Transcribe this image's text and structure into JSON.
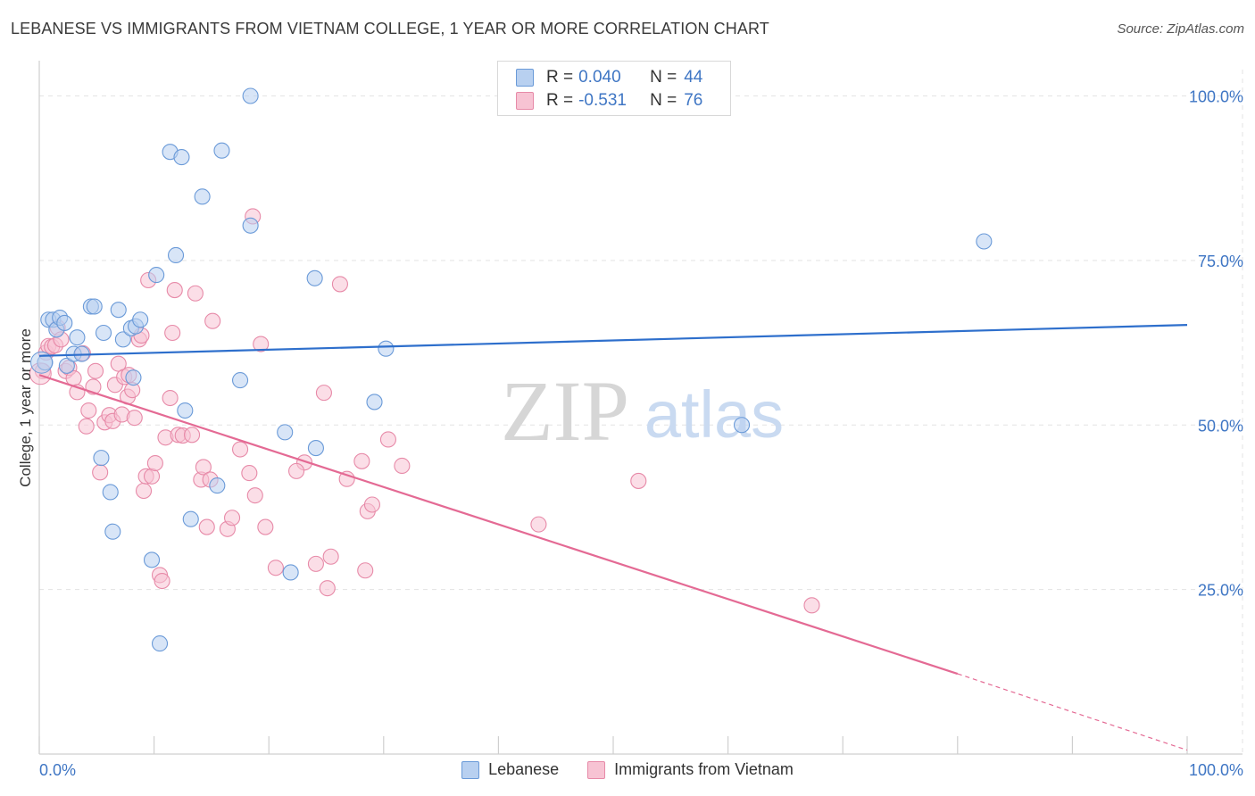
{
  "header": {
    "title": "LEBANESE VS IMMIGRANTS FROM VIETNAM COLLEGE, 1 YEAR OR MORE CORRELATION CHART",
    "source": "Source: ZipAtlas.com"
  },
  "watermark": {
    "zip": "ZIP",
    "atlas": "atlas"
  },
  "legend": {
    "rows": [
      {
        "r_label": "R = ",
        "r_value": "0.040",
        "n_label": "N = ",
        "n_value": "44"
      },
      {
        "r_label": "R = ",
        "r_value": "-0.531",
        "n_label": "N = ",
        "n_value": "76"
      }
    ]
  },
  "bottom_legend": {
    "series1": "Lebanese",
    "series2": "Immigrants from Vietnam"
  },
  "colors": {
    "blue_fill": "#b8d0f0",
    "blue_stroke": "#6a9ad8",
    "blue_line": "#2e6fcc",
    "pink_fill": "#f7c3d3",
    "pink_stroke": "#e78aa8",
    "pink_line": "#e46a94",
    "tick_text": "#3f76c4",
    "grid": "#e3e3e3"
  },
  "chart_data": {
    "type": "scatter",
    "title": "LEBANESE VS IMMIGRANTS FROM VIETNAM COLLEGE, 1 YEAR OR MORE CORRELATION CHART",
    "xlabel": "",
    "ylabel": "College, 1 year or more",
    "xlim": [
      0,
      100
    ],
    "ylim": [
      0,
      104
    ],
    "x_tick_labels": [
      "0.0%",
      "100.0%"
    ],
    "y_ticks": [
      25,
      50,
      75,
      100
    ],
    "y_tick_labels": [
      "25.0%",
      "50.0%",
      "75.0%",
      "100.0%"
    ],
    "grid": true,
    "legend_position": "top-center",
    "series": [
      {
        "name": "Lebanese",
        "r": 0.04,
        "n": 44,
        "trend": {
          "x0": 0,
          "y0": 60.5,
          "x1": 100,
          "y1": 65.2
        },
        "points": [
          [
            0.5,
            59.5
          ],
          [
            0.8,
            66
          ],
          [
            1.2,
            66
          ],
          [
            1.5,
            64.5
          ],
          [
            1.8,
            66.3
          ],
          [
            2.2,
            65.5
          ],
          [
            2.4,
            59
          ],
          [
            3,
            60.8
          ],
          [
            3.3,
            63.3
          ],
          [
            3.7,
            60.8
          ],
          [
            4.5,
            68
          ],
          [
            4.8,
            68
          ],
          [
            5.4,
            45
          ],
          [
            5.6,
            64
          ],
          [
            6.2,
            39.8
          ],
          [
            6.4,
            33.8
          ],
          [
            6.9,
            67.5
          ],
          [
            7.3,
            63
          ],
          [
            8,
            64.7
          ],
          [
            8.2,
            57.2
          ],
          [
            8.4,
            65
          ],
          [
            8.8,
            66
          ],
          [
            9.8,
            29.5
          ],
          [
            10.2,
            72.8
          ],
          [
            10.5,
            16.8
          ],
          [
            11.4,
            91.5
          ],
          [
            11.9,
            75.8
          ],
          [
            12.4,
            90.7
          ],
          [
            12.7,
            52.2
          ],
          [
            13.2,
            35.7
          ],
          [
            14.2,
            84.7
          ],
          [
            15.5,
            40.8
          ],
          [
            17.5,
            56.8
          ],
          [
            15.9,
            91.7
          ],
          [
            18.4,
            80.3
          ],
          [
            18.4,
            100
          ],
          [
            21.4,
            48.9
          ],
          [
            21.9,
            27.6
          ],
          [
            24,
            72.3
          ],
          [
            24.1,
            46.5
          ],
          [
            29.2,
            53.5
          ],
          [
            30.2,
            61.6
          ],
          [
            61.2,
            50
          ],
          [
            82.3,
            77.9
          ]
        ]
      },
      {
        "name": "Immigrants from Vietnam",
        "r": -0.531,
        "n": 76,
        "trend": {
          "x0": 0,
          "y0": 57.6,
          "x1": 80,
          "y1": 12.2,
          "dash_x1": 100,
          "dash_y1": 0.6
        },
        "points": [
          [
            0.3,
            58.2
          ],
          [
            0.6,
            61
          ],
          [
            0.8,
            62
          ],
          [
            1.1,
            61.9
          ],
          [
            1.4,
            62.1
          ],
          [
            1.6,
            64.8
          ],
          [
            1.9,
            63
          ],
          [
            2.3,
            58.2
          ],
          [
            2.6,
            58.7
          ],
          [
            3,
            57.1
          ],
          [
            3.3,
            55
          ],
          [
            3.8,
            60.9
          ],
          [
            4.1,
            49.8
          ],
          [
            4.3,
            52.2
          ],
          [
            4.7,
            55.8
          ],
          [
            4.9,
            58.2
          ],
          [
            5.3,
            42.8
          ],
          [
            5.7,
            50.4
          ],
          [
            6.1,
            51.5
          ],
          [
            6.4,
            50.6
          ],
          [
            6.6,
            56.1
          ],
          [
            6.9,
            59.3
          ],
          [
            7.2,
            51.6
          ],
          [
            7.4,
            57.3
          ],
          [
            7.7,
            54.3
          ],
          [
            7.8,
            57.6
          ],
          [
            8.1,
            55.3
          ],
          [
            8.3,
            51.1
          ],
          [
            8.7,
            63
          ],
          [
            8.9,
            63.6
          ],
          [
            9.1,
            40
          ],
          [
            9.3,
            42.2
          ],
          [
            9.5,
            72
          ],
          [
            9.8,
            42.2
          ],
          [
            10.1,
            44.2
          ],
          [
            10.5,
            27.2
          ],
          [
            10.7,
            26.3
          ],
          [
            11,
            48.1
          ],
          [
            11.4,
            54.1
          ],
          [
            11.6,
            64
          ],
          [
            11.8,
            70.5
          ],
          [
            12.1,
            48.5
          ],
          [
            12.5,
            48.4
          ],
          [
            13.3,
            48.5
          ],
          [
            13.6,
            70
          ],
          [
            14.1,
            41.7
          ],
          [
            14.3,
            43.6
          ],
          [
            14.6,
            34.5
          ],
          [
            14.9,
            41.7
          ],
          [
            15.1,
            65.8
          ],
          [
            16.4,
            34.2
          ],
          [
            16.8,
            35.9
          ],
          [
            17.5,
            46.3
          ],
          [
            18.3,
            42.7
          ],
          [
            18.6,
            81.7
          ],
          [
            18.8,
            39.3
          ],
          [
            19.3,
            62.3
          ],
          [
            19.7,
            34.5
          ],
          [
            20.6,
            28.3
          ],
          [
            23.1,
            44.3
          ],
          [
            24.1,
            28.9
          ],
          [
            24.8,
            54.9
          ],
          [
            25.1,
            25.2
          ],
          [
            25.4,
            30
          ],
          [
            26.2,
            71.4
          ],
          [
            26.8,
            41.8
          ],
          [
            28.4,
            27.9
          ],
          [
            28.6,
            36.9
          ],
          [
            29,
            37.9
          ],
          [
            30.4,
            47.8
          ],
          [
            31.6,
            43.8
          ],
          [
            43.5,
            34.9
          ],
          [
            52.2,
            41.5
          ],
          [
            67.3,
            22.6
          ],
          [
            28.1,
            44.5
          ],
          [
            22.4,
            43
          ]
        ]
      }
    ]
  }
}
